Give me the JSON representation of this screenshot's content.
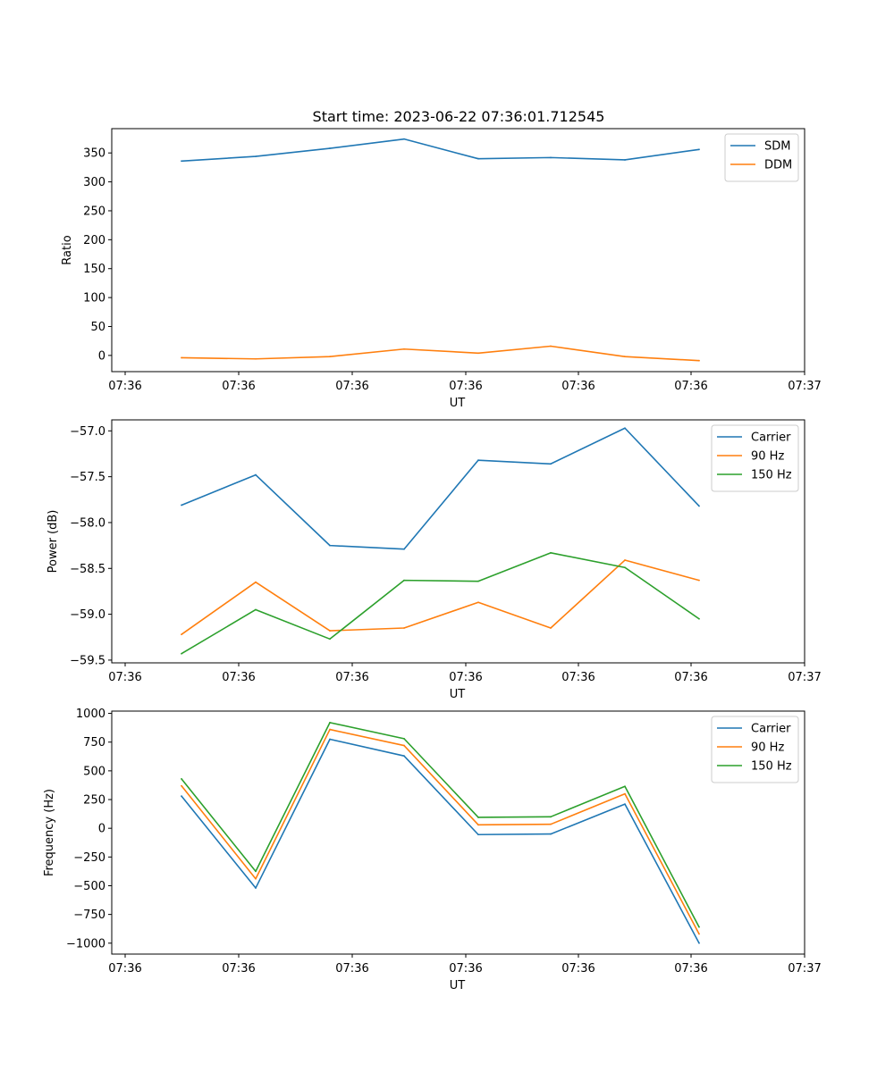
{
  "figure": {
    "title": "Start time: 2023-06-22 07:36:01.712545"
  },
  "chart_data": [
    {
      "type": "line",
      "title": "Start time: 2023-06-22 07:36:01.712545",
      "xlabel": "UT",
      "ylabel": "Ratio",
      "x_tick_labels": [
        "07:36",
        "07:36",
        "07:36",
        "07:36",
        "07:36",
        "07:36",
        "07:37"
      ],
      "y_ticks": [
        0,
        50,
        100,
        150,
        200,
        250,
        300,
        350
      ],
      "ylim": [
        -28,
        392
      ],
      "grid": false,
      "legend": "top-right",
      "series": [
        {
          "name": "SDM",
          "color": "#1f77b4",
          "values": [
            336,
            344,
            358,
            374,
            340,
            342,
            338,
            356
          ]
        },
        {
          "name": "DDM",
          "color": "#ff7f0e",
          "values": [
            -4,
            -6,
            -2,
            11,
            4,
            16,
            -2,
            -9
          ]
        }
      ]
    },
    {
      "type": "line",
      "title": "",
      "xlabel": "UT",
      "ylabel": "Power (dB)",
      "x_tick_labels": [
        "07:36",
        "07:36",
        "07:36",
        "07:36",
        "07:36",
        "07:36",
        "07:37"
      ],
      "y_ticks": [
        -59.5,
        -59.0,
        -58.5,
        -58.0,
        -57.5,
        -57.0
      ],
      "y_tick_labels": [
        "−59.5",
        "−59.0",
        "−58.5",
        "−58.0",
        "−57.5",
        "−57.0"
      ],
      "ylim": [
        -59.53,
        -56.88
      ],
      "grid": false,
      "legend": "top-right",
      "series": [
        {
          "name": "Carrier",
          "color": "#1f77b4",
          "values": [
            -57.81,
            -57.48,
            -58.25,
            -58.29,
            -57.32,
            -57.36,
            -56.97,
            -57.82
          ]
        },
        {
          "name": "90 Hz",
          "color": "#ff7f0e",
          "values": [
            -59.22,
            -58.65,
            -59.18,
            -59.15,
            -58.87,
            -59.15,
            -58.41,
            -58.63
          ]
        },
        {
          "name": "150 Hz",
          "color": "#2ca02c",
          "values": [
            -59.43,
            -58.95,
            -59.27,
            -58.63,
            -58.64,
            -58.33,
            -58.49,
            -59.05
          ]
        }
      ]
    },
    {
      "type": "line",
      "title": "",
      "xlabel": "UT",
      "ylabel": "Frequency (Hz)",
      "x_tick_labels": [
        "07:36",
        "07:36",
        "07:36",
        "07:36",
        "07:36",
        "07:36",
        "07:37"
      ],
      "y_ticks": [
        -1000,
        -750,
        -500,
        -250,
        0,
        250,
        500,
        750,
        1000
      ],
      "y_tick_labels": [
        "−1000",
        "−750",
        "−500",
        "−250",
        "0",
        "250",
        "500",
        "750",
        "1000"
      ],
      "ylim": [
        -1095,
        1020
      ],
      "grid": false,
      "legend": "top-right",
      "series": [
        {
          "name": "Carrier",
          "color": "#1f77b4",
          "values": [
            280,
            -520,
            775,
            630,
            -55,
            -50,
            210,
            -1000
          ]
        },
        {
          "name": "90 Hz",
          "color": "#ff7f0e",
          "values": [
            370,
            -440,
            860,
            720,
            30,
            35,
            300,
            -920
          ]
        },
        {
          "name": "150 Hz",
          "color": "#2ca02c",
          "values": [
            430,
            -375,
            920,
            780,
            95,
            100,
            365,
            -860
          ]
        }
      ]
    }
  ]
}
